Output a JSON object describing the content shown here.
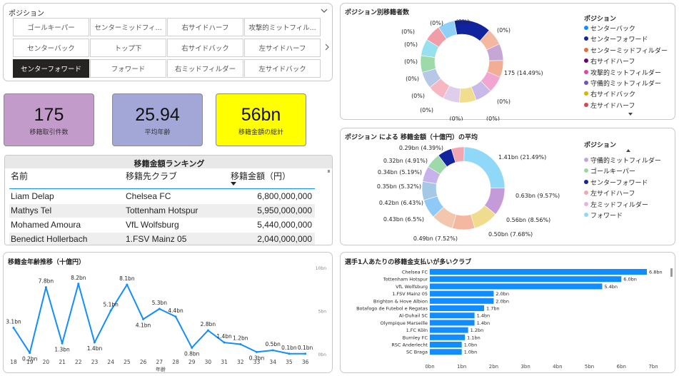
{
  "slicer": {
    "title": "ポジション",
    "buttons": [
      {
        "label": "ゴールキーパー",
        "selected": false
      },
      {
        "label": "センターミッドフィ...",
        "selected": false
      },
      {
        "label": "右サイドハーフ",
        "selected": false
      },
      {
        "label": "攻撃的ミットフィル...",
        "selected": false
      },
      {
        "label": "センターバック",
        "selected": false
      },
      {
        "label": "トップ下",
        "selected": false
      },
      {
        "label": "右サイドバック",
        "selected": false
      },
      {
        "label": "左サイドハーフ",
        "selected": false
      },
      {
        "label": "センターフォワード",
        "selected": true
      },
      {
        "label": "フォワード",
        "selected": false
      },
      {
        "label": "右ミッドフィルダー",
        "selected": false
      },
      {
        "label": "左サイドバック",
        "selected": false
      }
    ],
    "icons": {
      "collapse": "chevron-down-icon",
      "next": "chevron-right-icon"
    }
  },
  "kpis": [
    {
      "value": "175",
      "label": "移籍取引件数",
      "bg": "#c39bcb"
    },
    {
      "value": "25.94",
      "label": "平均年齢",
      "bg": "#a3a7d7"
    },
    {
      "value": "56bn",
      "label": "移籍金額の総計",
      "bg": "#ffff00"
    }
  ],
  "ranking": {
    "title": "移籍金額ランキング",
    "columns": [
      "名前",
      "移籍先クラブ",
      "移籍金額（円）"
    ],
    "sort_icon": "sort-desc-icon",
    "rows": [
      [
        "Liam Delap",
        "Chelsea FC",
        "6,800,000,000"
      ],
      [
        "Mathys Tel",
        "Tottenham Hotspur",
        "5,950,000,000"
      ],
      [
        "Mohamed Amoura",
        "VfL Wolfsburg",
        "5,440,000,000"
      ],
      [
        "Benedict Hollerbach",
        "1.FSV Mainz 05",
        "2,040,000,000"
      ]
    ]
  },
  "donut1": {
    "title": "ポジション別移籍者数",
    "legend_title": "ポジション",
    "legend": [
      {
        "label": "センターバック",
        "color": "#118dff"
      },
      {
        "label": "センターフォワード",
        "color": "#12239e"
      },
      {
        "label": "センターミッドフィルダー",
        "color": "#e66c37"
      },
      {
        "label": "右サイドハーフ",
        "color": "#6b007b"
      },
      {
        "label": "攻撃的ミットフィルダー",
        "color": "#e044a7"
      },
      {
        "label": "守備的ミットフィルダー",
        "color": "#744ec2"
      },
      {
        "label": "右サイドバック",
        "color": "#d9b300"
      },
      {
        "label": "左サイドハーフ",
        "color": "#d64550"
      }
    ],
    "labels": [
      "(0%)",
      "(0%)",
      "(0%)",
      "(0%)",
      "(0%)",
      "(0%)",
      "(0%)",
      "(0%)",
      "(0%)",
      "(0%)",
      "(0%)",
      "(0%)",
      "175 (14.49%)"
    ],
    "scroll_icon": "scroll-down-icon"
  },
  "donut2": {
    "title": "ポジション による 移籍金額（十億円）の平均",
    "legend_title": "ポジション",
    "legend": [
      {
        "label": "守備的ミットフィルダー",
        "color": "#c3a4e0"
      },
      {
        "label": "ゴールキーパー",
        "color": "#9bd6a4"
      },
      {
        "label": "センターフォワード",
        "color": "#12239e"
      },
      {
        "label": "左サイドハーフ",
        "color": "#f2a6b1"
      },
      {
        "label": "左ミッドフィルダー",
        "color": "#e3b3e3"
      },
      {
        "label": "フォワード",
        "color": "#8fd8f8"
      }
    ],
    "labels": [
      "1.41bn (21.49%)",
      "0.63bn (9.57%)",
      "0.56bn (8.56%)",
      "0.50bn (7.68%)",
      "0.49bn (7.52%)",
      "0.43bn (6.5%)",
      "0.42bn (6.43%)",
      "0.35bn (5.32%)",
      "0.34bn (5.19%)",
      "0.32bn (4.91%)",
      "0.29bn (4.39%)"
    ],
    "scroll_icon": "scroll-up-icon"
  },
  "line": {
    "title": "移籍金年齢推移（十億円）",
    "xlabel": "年齢",
    "y_ticks": [
      "10bn",
      "5bn",
      "0bn"
    ]
  },
  "bars": {
    "title": "選手1人あたりの移籍金支払いが多いクラブ",
    "x_ticks": [
      "0bn",
      "1bn",
      "2bn",
      "3bn",
      "4bn",
      "5bn",
      "6bn",
      "7bn"
    ]
  },
  "chart_data": [
    {
      "type": "line",
      "title": "移籍金年齢推移（十億円）",
      "xlabel": "年齢",
      "ylabel": "",
      "x": [
        18,
        19,
        20,
        21,
        22,
        23,
        24,
        25,
        26,
        27,
        28,
        29,
        30,
        31,
        32,
        33,
        34,
        35,
        36
      ],
      "values": [
        3.1,
        0.2,
        7.8,
        1.3,
        8.2,
        1.4,
        5.1,
        8.1,
        4.1,
        5.3,
        4.4,
        0.8,
        2.8,
        1.4,
        1.2,
        0.3,
        0.5,
        0.1,
        0.1
      ],
      "value_labels": [
        "3.1bn",
        "0.2bn",
        "7.8bn",
        "1.3bn",
        "8.2bn",
        "1.4bn",
        "5.1bn",
        "8.1bn",
        "4.1bn",
        "5.3bn",
        "4.4bn",
        "0.8bn",
        "2.8bn",
        "1.4bn",
        "1.2bn",
        "0.3bn",
        "0.5bn",
        "0.1bn",
        "0.1bn"
      ],
      "ylim": [
        0,
        10
      ],
      "color": "#118dff"
    },
    {
      "type": "bar",
      "orientation": "horizontal",
      "title": "選手1人あたりの移籍金支払いが多いクラブ",
      "categories": [
        "Chelsea FC",
        "Tottenham Hotspur",
        "VfL Wolfsburg",
        "1.FSV Mainz 05",
        "Brighton & Hove Albion",
        "Botafogo de Futebol e Regatas",
        "Al-Duhail SC",
        "Olympique Marseille",
        "1.FC Köln",
        "Burnley FC",
        "RSC Anderlecht",
        "SC Braga"
      ],
      "values": [
        6.8,
        6.0,
        5.4,
        2.0,
        2.0,
        1.7,
        1.4,
        1.4,
        1.2,
        1.1,
        1.0,
        1.0
      ],
      "value_labels": [
        "6.8bn",
        "6.0bn",
        "5.4bn",
        "2.0bn",
        "2.0bn",
        "1.7bn",
        "1.4bn",
        "1.4bn",
        "1.2bn",
        "1.1bn",
        "1.0bn",
        "1.0bn"
      ],
      "xlim": [
        0,
        7
      ],
      "color": "#118dff"
    },
    {
      "type": "pie",
      "title": "ポジション別移籍者数",
      "slices": [
        {
          "name": "センターフォワード",
          "value": 175,
          "percent": 14.49,
          "color": "#12239e"
        },
        {
          "name": "pos-b",
          "value": 0,
          "percent": 0,
          "color": "#f4b8a0"
        },
        {
          "name": "pos-c",
          "value": 0,
          "percent": 0,
          "color": "#c7a6d6"
        },
        {
          "name": "pos-d",
          "value": 0,
          "percent": 0,
          "color": "#f1ae94"
        },
        {
          "name": "pos-e",
          "value": 0,
          "percent": 0,
          "color": "#f0a6d0"
        },
        {
          "name": "pos-f",
          "value": 0,
          "percent": 0,
          "color": "#c9b9e8"
        },
        {
          "name": "pos-g",
          "value": 0,
          "percent": 0,
          "color": "#f0de8e"
        },
        {
          "name": "pos-h",
          "value": 0,
          "percent": 0,
          "color": "#e0cde9"
        },
        {
          "name": "pos-i",
          "value": 0,
          "percent": 0,
          "color": "#f6b7c3"
        },
        {
          "name": "pos-j",
          "value": 0,
          "percent": 0,
          "color": "#b6c8e6"
        },
        {
          "name": "pos-k",
          "value": 0,
          "percent": 0,
          "color": "#9ed9a9"
        },
        {
          "name": "pos-l",
          "value": 0,
          "percent": 0,
          "color": "#96e0f0"
        },
        {
          "name": "pos-m",
          "value": 0,
          "percent": 0,
          "color": "#f19da8"
        },
        {
          "name": "センターバック",
          "value": 0,
          "percent": 0,
          "color": "#8fd0f8"
        }
      ]
    },
    {
      "type": "pie",
      "title": "ポジション による 移籍金額（十億円）の平均",
      "slices": [
        {
          "name": "フォワード",
          "value": 1.41,
          "percent": 21.49,
          "color": "#8fd8f8"
        },
        {
          "name": "s2",
          "value": 0.63,
          "percent": 9.57,
          "color": "#c49ad8"
        },
        {
          "name": "s3",
          "value": 0.56,
          "percent": 8.56,
          "color": "#f0dc8e"
        },
        {
          "name": "s4",
          "value": 0.5,
          "percent": 7.68,
          "color": "#f4b8a0"
        },
        {
          "name": "s5",
          "value": 0.49,
          "percent": 7.52,
          "color": "#f3c6ae"
        },
        {
          "name": "s6",
          "value": 0.43,
          "percent": 6.5,
          "color": "#8fc9f6"
        },
        {
          "name": "s7",
          "value": 0.42,
          "percent": 6.43,
          "color": "#a5c8e6"
        },
        {
          "name": "s8",
          "value": 0.35,
          "percent": 5.32,
          "color": "#c7b2ec"
        },
        {
          "name": "s9",
          "value": 0.34,
          "percent": 5.19,
          "color": "#9ed9a9"
        },
        {
          "name": "センターフォワード",
          "value": 0.32,
          "percent": 4.91,
          "color": "#12239e"
        },
        {
          "name": "左サイドハーフ",
          "value": 0.29,
          "percent": 4.39,
          "color": "#f2a6b1"
        }
      ]
    }
  ]
}
